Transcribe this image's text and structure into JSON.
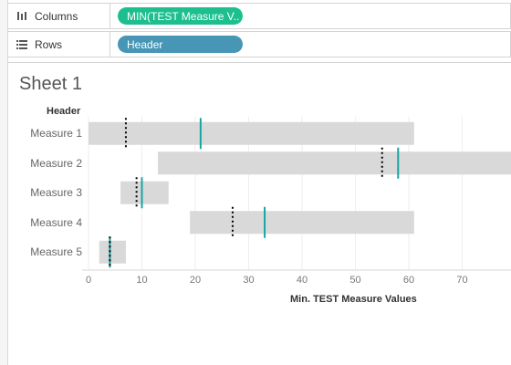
{
  "shelves": {
    "columns": {
      "label": "Columns",
      "icon": "columns-icon",
      "pill": "MIN(TEST Measure V..",
      "pill_color": "#1ebf8f"
    },
    "rows": {
      "label": "Rows",
      "icon": "rows-icon",
      "pill": "Header",
      "pill_color": "#4796b6"
    }
  },
  "sheet": {
    "title": "Sheet 1"
  },
  "chart_data": {
    "type": "bar",
    "row_header": "Header",
    "categories": [
      "Measure 1",
      "Measure 2",
      "Measure 3",
      "Measure 4",
      "Measure 5"
    ],
    "series": [
      {
        "values": [
          [
            0,
            61
          ],
          [
            13,
            84
          ],
          [
            6,
            15
          ],
          [
            19,
            61
          ],
          [
            2,
            7
          ]
        ],
        "color": "#d9d9d9"
      },
      {
        "values": [
          21,
          58,
          10,
          33,
          4
        ],
        "color": "#1aa3a3"
      },
      {
        "values": [
          7,
          55,
          9,
          27,
          4
        ],
        "color": "#000000"
      }
    ],
    "x_ticks": [
      0,
      10,
      20,
      30,
      40,
      50,
      60,
      70
    ],
    "xlabel": "Min. TEST Measure Values",
    "xlim": [
      0,
      80
    ],
    "grid": true
  }
}
